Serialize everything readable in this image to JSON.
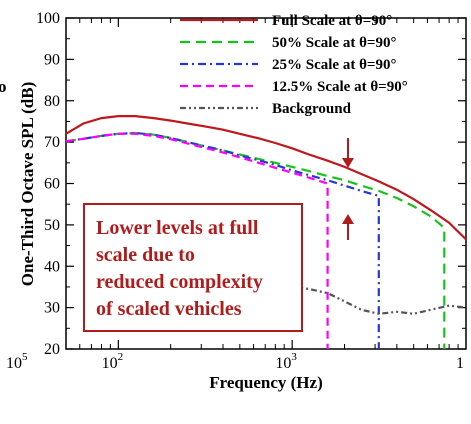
{
  "chart_data": {
    "type": "line",
    "xlabel": "Frequency (Hz)",
    "ylabel": "One-Third Octave SPL (dB)",
    "x_scale": "log",
    "xlim": [
      50,
      10000
    ],
    "ylim": [
      20,
      100
    ],
    "x_ticks": [
      {
        "value": 100,
        "base": "10",
        "exp": "2"
      },
      {
        "value": 1000,
        "base": "10",
        "exp": "3"
      }
    ],
    "y_ticks": [
      20,
      30,
      40,
      50,
      60,
      70,
      80,
      90,
      100
    ],
    "cropped_left_tick": {
      "base": "10",
      "exp": "5"
    },
    "cropped_right_tick": "1",
    "cropped_left_letter": "o",
    "grid": false,
    "legend_position": "top-right",
    "series": [
      {
        "name": "Full Scale at θ=90°",
        "color": "#c0171c",
        "dash": "solid",
        "points": [
          [
            50,
            72
          ],
          [
            63,
            74.5
          ],
          [
            80,
            75.8
          ],
          [
            100,
            76.3
          ],
          [
            125,
            76.3
          ],
          [
            160,
            75.8
          ],
          [
            200,
            75.2
          ],
          [
            250,
            74.5
          ],
          [
            315,
            73.8
          ],
          [
            400,
            73
          ],
          [
            500,
            72
          ],
          [
            630,
            71
          ],
          [
            800,
            69.8
          ],
          [
            1000,
            68.5
          ],
          [
            1250,
            67
          ],
          [
            1600,
            65.5
          ],
          [
            2000,
            64
          ],
          [
            2500,
            62.3
          ],
          [
            3150,
            60.5
          ],
          [
            4000,
            58.5
          ],
          [
            5000,
            56.2
          ],
          [
            6300,
            53.5
          ],
          [
            8000,
            50.5
          ],
          [
            10000,
            46.5
          ]
        ]
      },
      {
        "name": "50% Scale at θ=90°",
        "color": "#19c419",
        "dash": "10,6",
        "points": [
          [
            50,
            70.2
          ],
          [
            63,
            70.8
          ],
          [
            80,
            71.5
          ],
          [
            100,
            72
          ],
          [
            125,
            72.2
          ],
          [
            160,
            71.8
          ],
          [
            200,
            71
          ],
          [
            250,
            70
          ],
          [
            315,
            69
          ],
          [
            400,
            68
          ],
          [
            500,
            67
          ],
          [
            630,
            66
          ],
          [
            800,
            65
          ],
          [
            1000,
            64
          ],
          [
            1250,
            63
          ],
          [
            1600,
            61.8
          ],
          [
            2000,
            60.8
          ],
          [
            2500,
            59.5
          ],
          [
            3150,
            58.2
          ],
          [
            4000,
            56.5
          ],
          [
            5000,
            54.5
          ],
          [
            6300,
            52
          ],
          [
            7500,
            49.3
          ],
          [
            7500,
            20
          ]
        ]
      },
      {
        "name": "25% Scale at θ=90°",
        "color": "#2836d6",
        "dash": "8,4,2,4",
        "points": [
          [
            50,
            70.2
          ],
          [
            63,
            70.8
          ],
          [
            80,
            71.5
          ],
          [
            100,
            72
          ],
          [
            125,
            72.2
          ],
          [
            160,
            71.8
          ],
          [
            200,
            71
          ],
          [
            250,
            70
          ],
          [
            315,
            69
          ],
          [
            400,
            68
          ],
          [
            500,
            66.8
          ],
          [
            630,
            65.7
          ],
          [
            800,
            64.5
          ],
          [
            1000,
            63.2
          ],
          [
            1250,
            62
          ],
          [
            1600,
            60.8
          ],
          [
            2000,
            59.5
          ],
          [
            2500,
            58.2
          ],
          [
            3150,
            57
          ],
          [
            3150,
            20
          ]
        ]
      },
      {
        "name": "12.5% Scale at θ=90°",
        "color": "#ff00ff",
        "dash": "8,5",
        "points": [
          [
            50,
            70.2
          ],
          [
            63,
            70.8
          ],
          [
            80,
            71.5
          ],
          [
            100,
            72
          ],
          [
            125,
            72
          ],
          [
            160,
            71.5
          ],
          [
            200,
            70.7
          ],
          [
            250,
            69.7
          ],
          [
            315,
            68.6
          ],
          [
            400,
            67.5
          ],
          [
            500,
            66.3
          ],
          [
            630,
            65.1
          ],
          [
            800,
            63.8
          ],
          [
            1000,
            62.6
          ],
          [
            1250,
            61.4
          ],
          [
            1600,
            60
          ],
          [
            1600,
            20
          ]
        ]
      },
      {
        "name": "Background",
        "color": "#555555",
        "dash": "6,3,2,3,2,3",
        "points": [
          [
            1000,
            35
          ],
          [
            1250,
            34.5
          ],
          [
            1600,
            33.5
          ],
          [
            2000,
            31.5
          ],
          [
            2500,
            29.5
          ],
          [
            3150,
            28.5
          ],
          [
            4000,
            29
          ],
          [
            5000,
            28.5
          ],
          [
            6300,
            29.5
          ],
          [
            8000,
            30.5
          ],
          [
            10000,
            30
          ]
        ]
      }
    ],
    "annotation": {
      "lines": [
        "Lower levels at full",
        "scale due to",
        "reduced complexity",
        "of scaled vehicles"
      ],
      "color": "#b01c1c"
    }
  }
}
